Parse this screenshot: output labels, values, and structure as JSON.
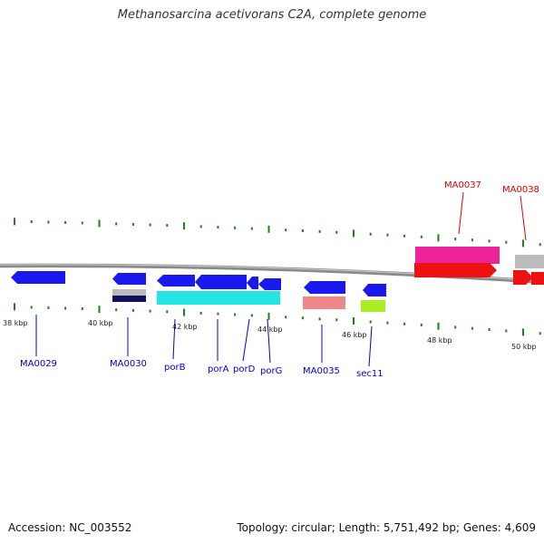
{
  "title": "Methanosarcina acetivorans C2A, complete genome",
  "footer": {
    "accession": "Accession: NC_003552",
    "summary": "Topology: circular; Length: 5,751,492 bp; Genes: 4,609"
  },
  "colors": {
    "backbone": "#8a8a8a",
    "ticks": "#1f7f1f",
    "label_forward": "#dd0000",
    "label_reverse": "#0000cc",
    "blue": "#1a1aee",
    "cyan": "#22e5e5",
    "salmon": "#ee8888",
    "lime": "#aaee22",
    "magenta": "#ee2299",
    "red": "#ee1111",
    "grey": "#bbbbbb",
    "navy": "#101060"
  },
  "scale_labels": [
    "38 kbp",
    "40 kbp",
    "42 kbp",
    "44 kbp",
    "46 kbp",
    "48 kbp",
    "50 kbp"
  ],
  "gene_labels": [
    "MA0029",
    "MA0030",
    "porB",
    "porA",
    "porD",
    "porG",
    "MA0035",
    "sec11",
    "MA0037",
    "MA0038"
  ]
}
